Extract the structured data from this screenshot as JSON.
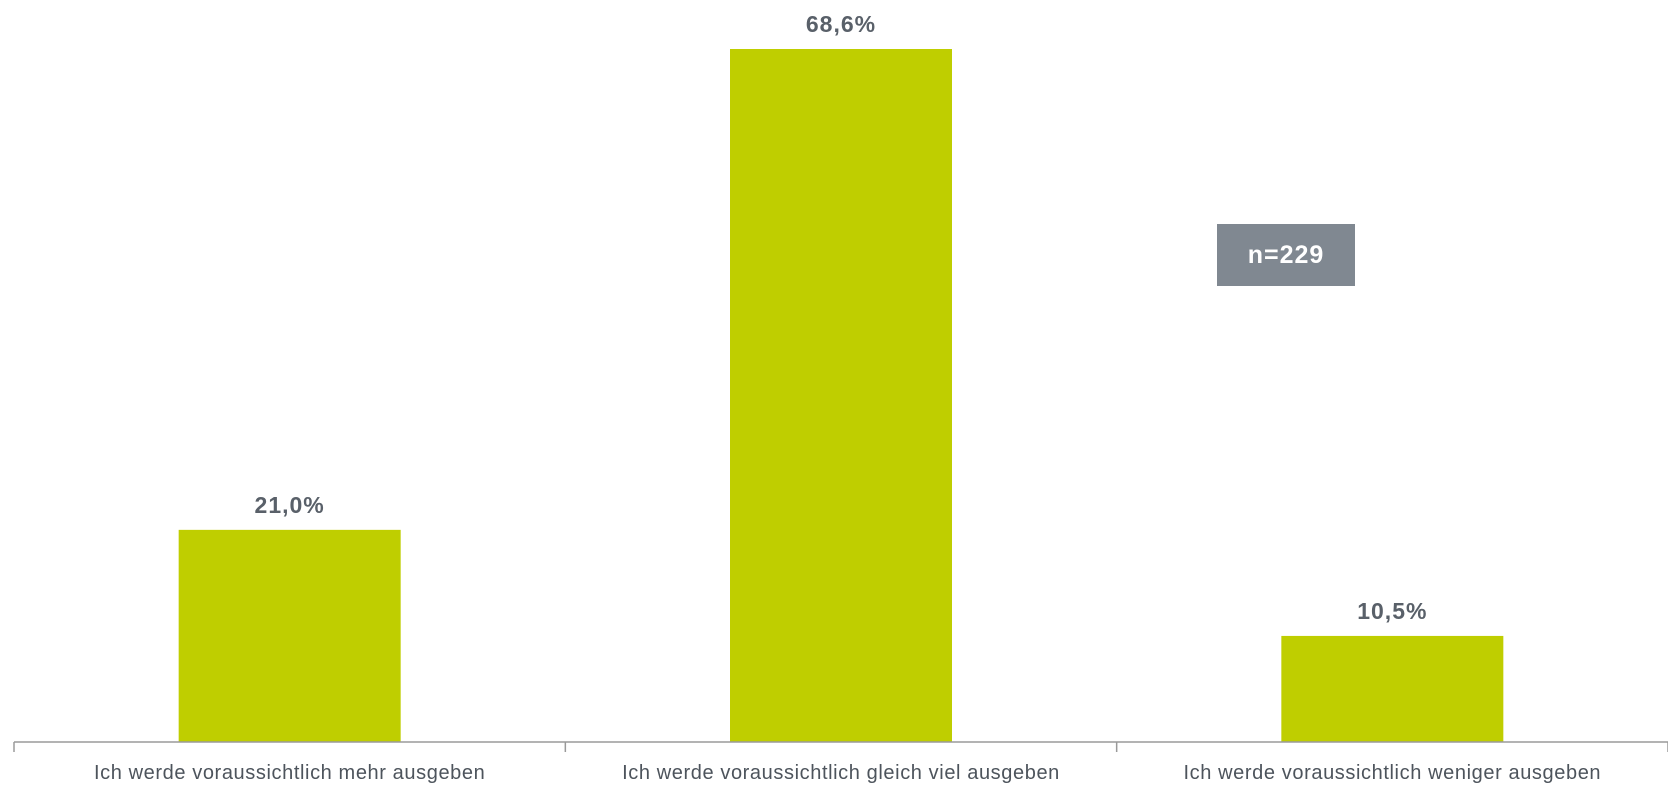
{
  "chart_data": {
    "type": "bar",
    "categories": [
      "Ich werde voraussichtlich mehr ausgeben",
      "Ich werde voraussichtlich gleich viel ausgeben",
      "Ich werde voraussichtlich weniger ausgeben"
    ],
    "values": [
      21.0,
      68.6,
      10.5
    ],
    "data_labels": [
      "21,0%",
      "68,6%",
      "10,5%"
    ],
    "unit": "%",
    "ylim": [
      0,
      68.6
    ],
    "grid": false,
    "legend": "none",
    "bar_color": "#bfce00",
    "annotation": "n=229"
  }
}
